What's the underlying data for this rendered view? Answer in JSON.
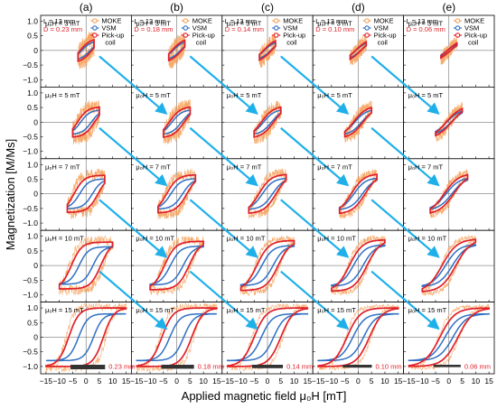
{
  "chart_data": {
    "type": "line",
    "title": "",
    "xlabel": "Applied magnetic field  μ₀H [mT]",
    "ylabel": "Magnetization [M/Ms]",
    "xlim": [
      -17,
      17
    ],
    "ylim": [
      -1.25,
      1.2
    ],
    "x_ticks": [
      "−15",
      "−10",
      "−5",
      "0",
      "5",
      "10",
      "15"
    ],
    "y_ticks": [
      "−1.0",
      "−0.5",
      "0",
      "0.5",
      "1.0"
    ],
    "columns": [
      {
        "label": "(a)",
        "L": "L = 13 mm",
        "D": "D = 0.23 mm",
        "scale": "0.23 mm"
      },
      {
        "label": "(b)",
        "L": "L = 13 mm",
        "D": "D = 0.18 mm",
        "scale": "0.18 mm"
      },
      {
        "label": "(c)",
        "L": "L = 13 mm",
        "D": "D = 0.14 mm",
        "scale": "0.14 mm"
      },
      {
        "label": "(d)",
        "L": "L = 13 mm",
        "D": "D = 0.10 mm",
        "scale": "0.10 mm"
      },
      {
        "label": "(e)",
        "L": "L = 13 mm",
        "D": "D = 0.06 mm",
        "scale": "0.06 mm"
      }
    ],
    "rows": [
      {
        "field": "μ₀H = 3 mT",
        "amp": 3
      },
      {
        "field": "μ₀H = 5 mT",
        "amp": 5
      },
      {
        "field": "μ₀H = 7 mT",
        "amp": 7
      },
      {
        "field": "μ₀H = 10 mT",
        "amp": 10
      },
      {
        "field": "μ₀H = 15 mT",
        "amp": 15
      }
    ],
    "legend": [
      {
        "name": "MOKE",
        "color": "#f5a15a"
      },
      {
        "name": "VSM",
        "color": "#2f6fc4"
      },
      {
        "name": "Pick-up coil",
        "color": "#e0202a"
      }
    ],
    "legend_position": "top-right of each top-row panel",
    "series_params": {
      "columns": [
        {
          "hc": [
            2.2,
            3.2,
            4.5,
            5.5,
            6.5
          ],
          "hk": 11,
          "vsm_hc": [
            1.6,
            2.0,
            2.4,
            2.6,
            2.8
          ]
        },
        {
          "hc": [
            1.8,
            2.8,
            3.8,
            4.6,
            5.6
          ],
          "hk": 12,
          "vsm_hc": [
            1.4,
            1.8,
            2.2,
            2.4,
            2.6
          ]
        },
        {
          "hc": [
            1.5,
            2.3,
            3.2,
            4.0,
            5.0
          ],
          "hk": 13,
          "vsm_hc": [
            1.2,
            1.5,
            1.9,
            2.1,
            2.3
          ]
        },
        {
          "hc": [
            1.0,
            1.8,
            2.6,
            3.3,
            4.2
          ],
          "hk": 14,
          "vsm_hc": [
            0.9,
            1.3,
            1.6,
            1.8,
            2.0
          ]
        },
        {
          "hc": [
            0.6,
            1.0,
            1.8,
            2.6,
            3.4
          ],
          "hk": 16,
          "vsm_hc": [
            0.6,
            0.8,
            1.1,
            1.3,
            1.5
          ]
        }
      ]
    },
    "arrows_color": "#1fb0ea"
  }
}
